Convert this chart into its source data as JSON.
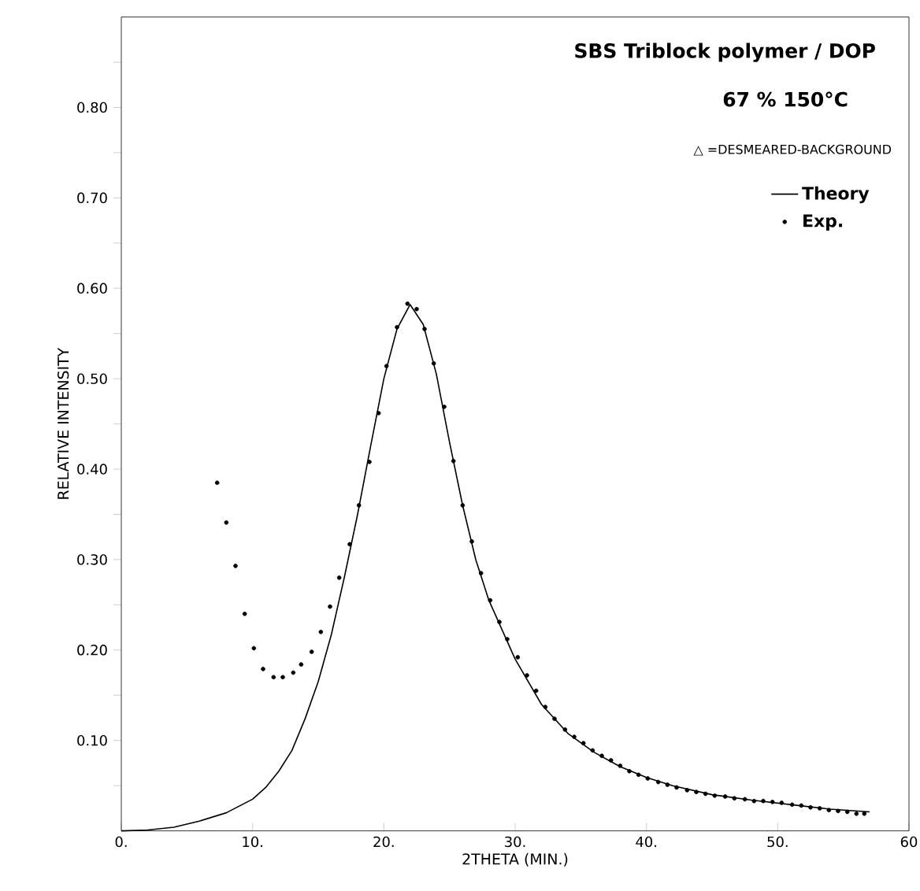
{
  "chart_data": {
    "type": "line",
    "title": "SBS Triblock polymer / DOP",
    "subtitle": "67 %  150°C",
    "xlabel": "2THETA (MIN.)",
    "ylabel": "RELATIVE INTENSITY",
    "annotations": [
      "△ =DESMEARED-BACKGROUND"
    ],
    "xlim": [
      0,
      60
    ],
    "ylim": [
      0,
      0.9
    ],
    "xticks": [
      {
        "value": 0,
        "label": "0."
      },
      {
        "value": 10,
        "label": "10."
      },
      {
        "value": 20,
        "label": "20."
      },
      {
        "value": 30,
        "label": "30."
      },
      {
        "value": 40,
        "label": "40."
      },
      {
        "value": 50,
        "label": "50."
      },
      {
        "value": 60,
        "label": "60"
      }
    ],
    "yticks": [
      {
        "value": 0.05,
        "label": null
      },
      {
        "value": 0.1,
        "label": "0.10"
      },
      {
        "value": 0.15,
        "label": null
      },
      {
        "value": 0.2,
        "label": "0.20"
      },
      {
        "value": 0.25,
        "label": null
      },
      {
        "value": 0.3,
        "label": "0.30"
      },
      {
        "value": 0.35,
        "label": null
      },
      {
        "value": 0.4,
        "label": "0.40"
      },
      {
        "value": 0.45,
        "label": null
      },
      {
        "value": 0.5,
        "label": "0.50"
      },
      {
        "value": 0.55,
        "label": null
      },
      {
        "value": 0.6,
        "label": "0.60"
      },
      {
        "value": 0.65,
        "label": null
      },
      {
        "value": 0.7,
        "label": "0.70"
      },
      {
        "value": 0.75,
        "label": null
      },
      {
        "value": 0.8,
        "label": "0.80"
      },
      {
        "value": 0.85,
        "label": null
      }
    ],
    "legend": "top right",
    "series": [
      {
        "name": "Theory",
        "color": "#000000",
        "marker": "none",
        "line_style": "solid",
        "x": [
          0,
          2,
          4,
          6,
          8,
          10,
          11,
          12,
          13,
          14,
          15,
          16,
          17,
          18,
          19,
          20,
          21,
          22,
          23,
          24,
          25,
          26,
          27,
          28,
          30,
          32,
          34,
          36,
          38,
          40,
          42,
          45,
          48,
          51,
          54,
          57
        ],
        "values": [
          0,
          0.001,
          0.004,
          0.011,
          0.02,
          0.035,
          0.048,
          0.066,
          0.089,
          0.124,
          0.165,
          0.217,
          0.281,
          0.35,
          0.426,
          0.5,
          0.555,
          0.582,
          0.56,
          0.505,
          0.43,
          0.36,
          0.3,
          0.255,
          0.19,
          0.14,
          0.108,
          0.087,
          0.071,
          0.059,
          0.05,
          0.04,
          0.034,
          0.029,
          0.024,
          0.021
        ]
      },
      {
        "name": "Exp.",
        "type": "scatter",
        "color": "#000000",
        "marker": "circle",
        "x": [
          7.3,
          8.0,
          8.7,
          9.4,
          10.1,
          10.8,
          11.6,
          12.3,
          13.1,
          13.7,
          14.5,
          15.2,
          15.9,
          16.6,
          17.4,
          18.1,
          18.9,
          19.6,
          20.2,
          21.0,
          21.8,
          22.5,
          23.1,
          23.8,
          24.6,
          25.3,
          26.0,
          26.7,
          27.4,
          28.1,
          28.8,
          29.4,
          30.2,
          30.9,
          31.6,
          32.3,
          33.0,
          33.8,
          34.5,
          35.2,
          35.9,
          36.6,
          37.3,
          38.0,
          38.7,
          39.4,
          40.1,
          40.9,
          41.6,
          42.3,
          43.1,
          43.8,
          44.5,
          45.2,
          46.0,
          46.7,
          47.5,
          48.2,
          48.9,
          49.6,
          50.3,
          51.1,
          51.8,
          52.5,
          53.2,
          53.9,
          54.6,
          55.3,
          56.0,
          56.6
        ],
        "values": [
          0.385,
          0.341,
          0.293,
          0.24,
          0.202,
          0.179,
          0.17,
          0.17,
          0.175,
          0.184,
          0.198,
          0.22,
          0.248,
          0.28,
          0.317,
          0.36,
          0.408,
          0.462,
          0.514,
          0.557,
          0.583,
          0.577,
          0.555,
          0.517,
          0.469,
          0.409,
          0.36,
          0.32,
          0.285,
          0.255,
          0.231,
          0.212,
          0.192,
          0.172,
          0.155,
          0.137,
          0.124,
          0.112,
          0.104,
          0.097,
          0.089,
          0.083,
          0.078,
          0.072,
          0.066,
          0.062,
          0.058,
          0.054,
          0.051,
          0.048,
          0.045,
          0.043,
          0.041,
          0.039,
          0.038,
          0.036,
          0.035,
          0.033,
          0.033,
          0.032,
          0.031,
          0.029,
          0.028,
          0.026,
          0.025,
          0.023,
          0.022,
          0.021,
          0.019,
          0.019
        ]
      }
    ]
  }
}
